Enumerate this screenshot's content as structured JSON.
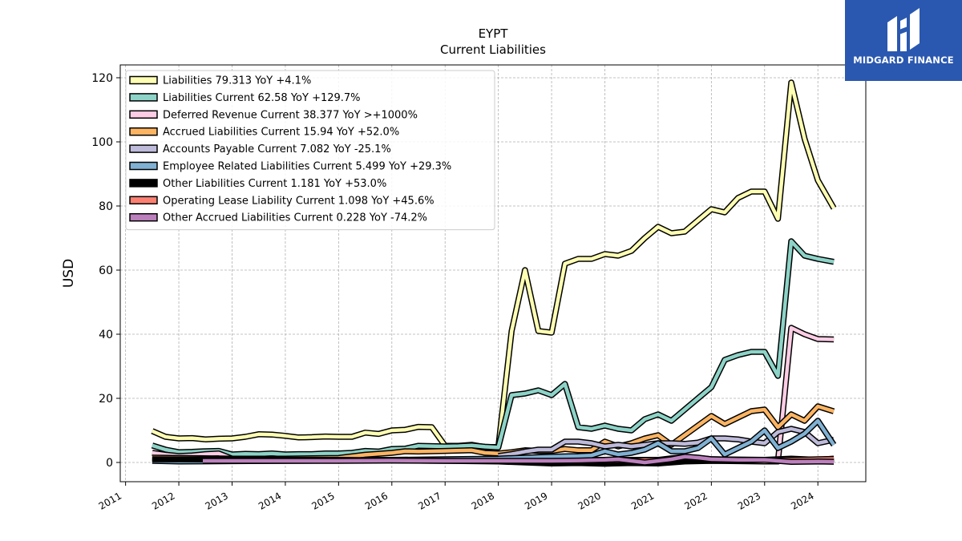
{
  "header": {
    "ticker": "EYPT",
    "subtitle": "Current  Liabilities"
  },
  "brand": {
    "name": "MIDGARD FINANCE",
    "color": "#2a58b0"
  },
  "chart_data": {
    "type": "line",
    "title": "EYPT",
    "subtitle": "Current  Liabilities",
    "xlabel": "",
    "ylabel": "USD",
    "ylim": [
      -6,
      124
    ],
    "xlim": [
      2010.9,
      2024.9
    ],
    "yticks": [
      0,
      20,
      40,
      60,
      80,
      100,
      120
    ],
    "xticks": [
      "2011",
      "2012",
      "2013",
      "2014",
      "2015",
      "2016",
      "2017",
      "2018",
      "2019",
      "2020",
      "2021",
      "2022",
      "2023",
      "2024"
    ],
    "grid": true,
    "legend_position": "top-left",
    "series": [
      {
        "name": "Liabilities",
        "legend": "Liabilities  79.313 YoY +4.1%",
        "color": "#ffffb3",
        "x": [
          2011.5,
          2011.75,
          2012.0,
          2012.25,
          2012.5,
          2012.75,
          2013.0,
          2013.25,
          2013.5,
          2013.75,
          2014.0,
          2014.25,
          2014.5,
          2014.75,
          2015.0,
          2015.25,
          2015.5,
          2015.75,
          2016.0,
          2016.25,
          2016.5,
          2016.75,
          2017.0,
          2017.25,
          2017.5,
          2017.75,
          2018.0,
          2018.25,
          2018.5,
          2018.75,
          2019.0,
          2019.25,
          2019.5,
          2019.75,
          2020.0,
          2020.25,
          2020.5,
          2020.75,
          2021.0,
          2021.25,
          2021.5,
          2021.75,
          2022.0,
          2022.25,
          2022.5,
          2022.75,
          2023.0,
          2023.25,
          2023.5,
          2023.75,
          2024.0,
          2024.3
        ],
        "y": [
          9.8,
          8.0,
          7.5,
          7.6,
          7.2,
          7.4,
          7.5,
          8.0,
          8.8,
          8.7,
          8.3,
          7.8,
          7.9,
          8.1,
          8.0,
          8.0,
          9.3,
          8.9,
          10.0,
          10.2,
          11.1,
          11.0,
          5.2,
          5.2,
          5.5,
          4.8,
          4.8,
          41.0,
          60.0,
          41.0,
          40.5,
          62.0,
          63.5,
          63.5,
          65.0,
          64.5,
          66.0,
          70.0,
          73.5,
          71.5,
          72.0,
          75.5,
          79.0,
          78.0,
          82.5,
          84.5,
          84.5,
          76.0,
          118.5,
          101.0,
          88.0,
          79.313
        ]
      },
      {
        "name": "Liabilities Current",
        "legend": "Liabilities Current  62.58 YoY +129.7%",
        "color": "#8dd3c7",
        "x": [
          2011.5,
          2011.75,
          2012.0,
          2012.25,
          2012.5,
          2012.75,
          2013.0,
          2013.25,
          2013.5,
          2013.75,
          2014.0,
          2014.25,
          2014.5,
          2014.75,
          2015.0,
          2015.25,
          2015.5,
          2015.75,
          2016.0,
          2016.25,
          2016.5,
          2016.75,
          2017.0,
          2017.25,
          2017.5,
          2017.75,
          2018.0,
          2018.25,
          2018.5,
          2018.75,
          2019.0,
          2019.25,
          2019.5,
          2019.75,
          2020.0,
          2020.25,
          2020.5,
          2020.75,
          2021.0,
          2021.25,
          2021.5,
          2021.75,
          2022.0,
          2022.25,
          2022.5,
          2022.75,
          2023.0,
          2023.25,
          2023.5,
          2023.75,
          2024.0,
          2024.3
        ],
        "y": [
          5.3,
          4.0,
          3.2,
          3.3,
          3.5,
          3.6,
          2.5,
          2.7,
          2.6,
          2.8,
          2.5,
          2.6,
          2.6,
          2.8,
          2.8,
          3.0,
          3.6,
          3.4,
          4.2,
          4.3,
          5.2,
          5.1,
          5.0,
          5.1,
          5.3,
          4.9,
          4.7,
          21.0,
          21.5,
          22.5,
          21.0,
          24.5,
          11.0,
          10.5,
          11.5,
          10.5,
          10.0,
          13.5,
          15.0,
          13.0,
          16.5,
          20.0,
          23.5,
          32.0,
          33.5,
          34.5,
          34.5,
          27.0,
          69.0,
          64.5,
          63.5,
          62.58
        ]
      },
      {
        "name": "Deferred Revenue Current",
        "legend": "Deferred Revenue Current  38.377 YoY >+1000%",
        "color": "#fccde5",
        "x": [
          2011.5,
          2011.75,
          2012.0,
          2012.25,
          2012.5,
          2012.75,
          2013.0,
          2013.5,
          2014.0,
          2015.0,
          2016.0,
          2017.0,
          2018.0,
          2019.0,
          2020.0,
          2021.0,
          2022.0,
          2023.0,
          2023.25,
          2023.5,
          2023.75,
          2024.0,
          2024.3
        ],
        "y": [
          3.0,
          2.4,
          2.0,
          2.2,
          2.6,
          2.8,
          1.2,
          1.0,
          0.9,
          0.8,
          0.8,
          0.8,
          0.8,
          0.8,
          0.8,
          0.8,
          0.5,
          0.3,
          0.3,
          42.0,
          40.0,
          38.5,
          38.377
        ]
      },
      {
        "name": "Accrued Liabilities Current",
        "legend": "Accrued Liabilities Current  15.94 YoY +52.0%",
        "color": "#fdb462",
        "x": [
          2011.5,
          2012.0,
          2013.0,
          2014.0,
          2015.0,
          2015.5,
          2016.0,
          2016.25,
          2016.5,
          2017.0,
          2017.5,
          2017.75,
          2018.0,
          2018.25,
          2018.5,
          2018.75,
          2019.0,
          2019.25,
          2019.5,
          2019.75,
          2020.0,
          2020.25,
          2020.5,
          2020.75,
          2021.0,
          2021.25,
          2021.5,
          2021.75,
          2022.0,
          2022.25,
          2022.5,
          2022.75,
          2023.0,
          2023.25,
          2023.5,
          2023.75,
          2024.0,
          2024.3
        ],
        "y": [
          1.5,
          1.4,
          1.2,
          1.2,
          1.4,
          2.4,
          3.0,
          3.5,
          3.4,
          3.6,
          3.8,
          3.0,
          2.8,
          3.2,
          3.8,
          3.6,
          3.6,
          4.2,
          3.8,
          3.8,
          6.5,
          5.0,
          6.0,
          7.5,
          8.5,
          5.5,
          8.5,
          11.5,
          14.5,
          12.0,
          14.0,
          16.0,
          16.5,
          11.0,
          15.0,
          13.0,
          17.5,
          15.94
        ]
      },
      {
        "name": "Accounts Payable Current",
        "legend": "Accounts Payable Current  7.082 YoY -25.1%",
        "color": "#bebada",
        "x": [
          2018.0,
          2018.25,
          2018.5,
          2018.75,
          2019.0,
          2019.25,
          2019.5,
          2019.75,
          2020.0,
          2020.25,
          2020.5,
          2020.75,
          2021.0,
          2021.25,
          2021.5,
          2021.75,
          2022.0,
          2022.25,
          2022.5,
          2022.75,
          2023.0,
          2023.25,
          2023.5,
          2023.75,
          2024.0,
          2024.3
        ],
        "y": [
          2.0,
          2.6,
          3.4,
          4.0,
          4.0,
          6.5,
          6.5,
          6.0,
          5.0,
          5.5,
          5.0,
          5.5,
          6.0,
          6.0,
          5.8,
          6.2,
          7.5,
          7.5,
          7.2,
          6.5,
          6.0,
          9.5,
          10.5,
          9.5,
          6.0,
          7.082
        ]
      },
      {
        "name": "Employee Related Liabilities Current",
        "legend": "Employee Related Liabilities Current  5.499 YoY +29.3%",
        "color": "#80b1d3",
        "x": [
          2011.5,
          2012.0,
          2013.0,
          2014.0,
          2015.0,
          2016.0,
          2017.0,
          2018.0,
          2018.5,
          2019.0,
          2019.5,
          2019.75,
          2020.0,
          2020.25,
          2020.5,
          2020.75,
          2021.0,
          2021.25,
          2021.5,
          2021.75,
          2022.0,
          2022.25,
          2022.5,
          2022.75,
          2023.0,
          2023.25,
          2023.5,
          2023.75,
          2024.0,
          2024.3
        ],
        "y": [
          0.5,
          0.3,
          0.4,
          0.5,
          0.6,
          0.8,
          1.0,
          1.2,
          1.5,
          1.8,
          2.0,
          2.2,
          3.5,
          2.5,
          3.0,
          4.0,
          6.0,
          3.5,
          3.5,
          4.5,
          7.5,
          2.5,
          4.5,
          6.5,
          10.0,
          4.5,
          6.5,
          9.0,
          13.0,
          5.499
        ]
      },
      {
        "name": "Other Liabilities Current",
        "legend": "Other Liabilities Current  1.181 YoY +53.0%",
        "color": "#000000",
        "x": [
          2011.5,
          2013.0,
          2015.0,
          2017.0,
          2018.0,
          2019.0,
          2019.5,
          2020.0,
          2020.5,
          2021.0,
          2021.5,
          2022.0,
          2022.5,
          2023.0,
          2023.5,
          2024.0,
          2024.3
        ],
        "y": [
          1.0,
          0.9,
          0.8,
          0.5,
          0.3,
          -0.3,
          -0.2,
          -0.4,
          -0.2,
          -0.3,
          0.3,
          0.5,
          0.6,
          0.8,
          1.2,
          0.8,
          1.181
        ]
      },
      {
        "name": "Operating Lease Liability Current",
        "legend": "Operating Lease Liability Current  1.098 YoY +45.6%",
        "color": "#fb8072",
        "x": [
          2019.0,
          2019.5,
          2020.0,
          2020.5,
          2021.0,
          2021.5,
          2022.0,
          2022.5,
          2023.0,
          2023.5,
          2024.0,
          2024.3
        ],
        "y": [
          0.2,
          0.3,
          0.5,
          0.6,
          0.8,
          1.8,
          1.0,
          0.9,
          0.8,
          0.8,
          1.0,
          1.098
        ]
      },
      {
        "name": "Other Accrued Liabilities Current",
        "legend": "Other Accrued Liabilities Current  0.228 YoY -74.2%",
        "color": "#bc80bd",
        "x": [
          2012.45,
          2013.0,
          2014.0,
          2015.0,
          2016.0,
          2017.0,
          2018.0,
          2019.0,
          2019.5,
          2020.0,
          2020.25,
          2020.5,
          2020.75,
          2021.0,
          2021.25,
          2021.5,
          2021.75,
          2022.0,
          2022.5,
          2023.0,
          2023.5,
          2024.0,
          2024.3
        ],
        "y": [
          0.5,
          0.5,
          0.5,
          0.5,
          0.6,
          0.5,
          0.5,
          0.5,
          0.6,
          0.8,
          1.0,
          0.5,
          0.0,
          0.5,
          1.0,
          1.8,
          1.5,
          1.0,
          0.8,
          0.8,
          0.2,
          0.3,
          0.228
        ]
      }
    ]
  }
}
